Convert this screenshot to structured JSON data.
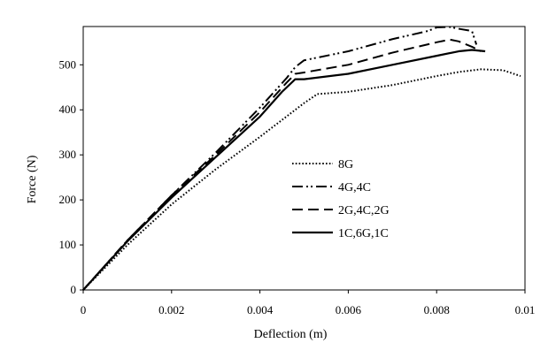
{
  "chart_data": {
    "type": "line",
    "xlabel": "Deflection (m)",
    "ylabel": "Force (N)",
    "xlim": [
      0,
      0.01
    ],
    "ylim": [
      0,
      585
    ],
    "x_ticks": [
      "0",
      "0.002",
      "0.004",
      "0.006",
      "0.008",
      "0.01"
    ],
    "y_ticks": [
      "0",
      "100",
      "200",
      "300",
      "400",
      "500"
    ],
    "grid": false,
    "legend_position": "center",
    "series": [
      {
        "name": "8G",
        "style": "dotted",
        "x": [
          0,
          0.001,
          0.002,
          0.003,
          0.004,
          0.005,
          0.0053,
          0.006,
          0.007,
          0.008,
          0.0085,
          0.009,
          0.0095,
          0.0099
        ],
        "y": [
          0,
          100,
          190,
          268,
          340,
          415,
          435,
          440,
          455,
          475,
          484,
          490,
          488,
          475
        ]
      },
      {
        "name": "4G,4C",
        "style": "dash-dot-dot",
        "x": [
          0,
          0.001,
          0.002,
          0.003,
          0.004,
          0.0046,
          0.0048,
          0.005,
          0.006,
          0.007,
          0.0078,
          0.008,
          0.0083,
          0.0085,
          0.0088,
          0.0089
        ],
        "y": [
          0,
          110,
          210,
          305,
          405,
          470,
          495,
          510,
          530,
          557,
          575,
          583,
          584,
          580,
          575,
          545
        ]
      },
      {
        "name": "2G,4C,2G",
        "style": "dashed",
        "x": [
          0,
          0.001,
          0.002,
          0.003,
          0.004,
          0.0046,
          0.0048,
          0.005,
          0.006,
          0.007,
          0.008,
          0.0083,
          0.0085,
          0.0088,
          0.009
        ],
        "y": [
          0,
          110,
          210,
          300,
          395,
          460,
          480,
          483,
          500,
          527,
          550,
          556,
          552,
          540,
          530
        ]
      },
      {
        "name": "1C,6G,1C",
        "style": "solid",
        "x": [
          0,
          0.001,
          0.002,
          0.003,
          0.004,
          0.0045,
          0.0048,
          0.005,
          0.006,
          0.007,
          0.008,
          0.0085,
          0.0088,
          0.0091
        ],
        "y": [
          0,
          108,
          205,
          295,
          385,
          440,
          468,
          468,
          480,
          500,
          520,
          530,
          533,
          530
        ]
      }
    ]
  }
}
